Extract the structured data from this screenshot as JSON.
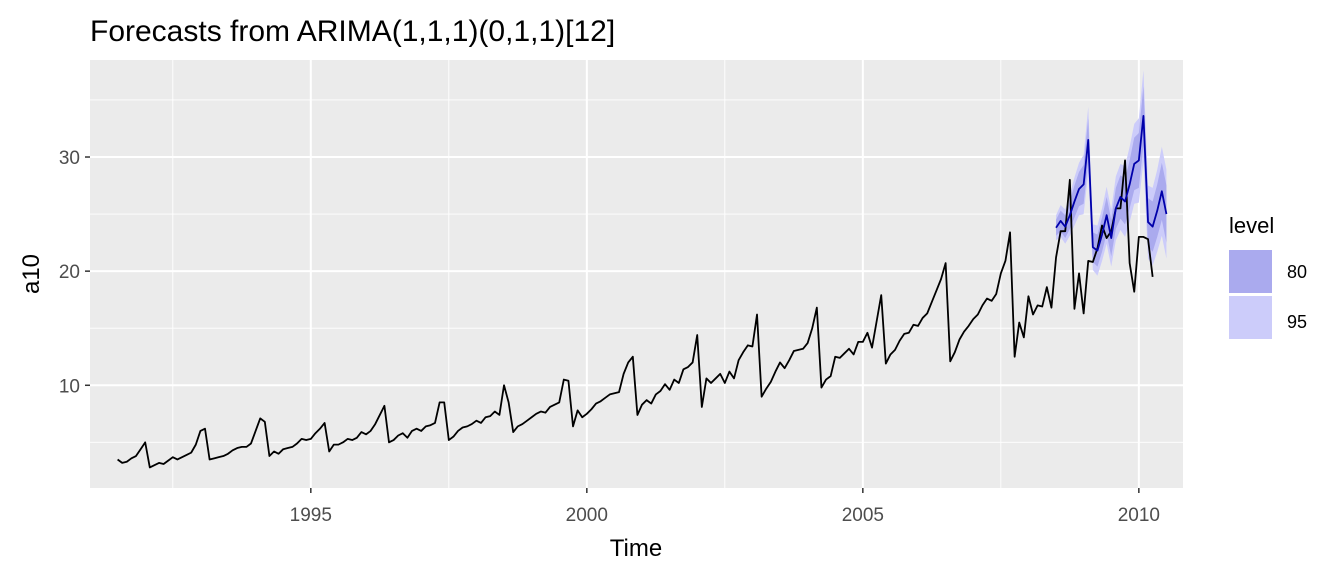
{
  "chart_data": {
    "type": "line",
    "title": "Forecasts from ARIMA(1,1,1)(0,1,1)[12]",
    "xlabel": "Time",
    "ylabel": "a10",
    "xlim": [
      1991.0,
      2010.8
    ],
    "ylim": [
      1.0,
      38.5
    ],
    "x_ticks": [
      1995,
      2000,
      2005,
      2010
    ],
    "x_tick_labels": [
      "1995",
      "2000",
      "2005",
      "2010"
    ],
    "y_ticks": [
      10,
      20,
      30
    ],
    "y_tick_labels": [
      "10",
      "20",
      "30"
    ],
    "grid": true,
    "legend": {
      "title": "level",
      "position": "right",
      "entries": [
        {
          "label": "80",
          "color": "#aaaaee"
        },
        {
          "label": "95",
          "color": "#ccccfa"
        }
      ]
    },
    "colors": {
      "panel": "#ebebeb",
      "grid_major": "#ffffff",
      "history_line": "#000000",
      "forecast_line": "#0000aa",
      "band_80": "#aaaaee",
      "band_95": "#ccccfa"
    },
    "history": {
      "start": [
        1991,
        7
      ],
      "frequency": 12,
      "values": [
        3.5,
        3.2,
        3.3,
        3.6,
        3.8,
        4.4,
        5.0,
        2.8,
        3.0,
        3.2,
        3.1,
        3.4,
        3.7,
        3.5,
        3.7,
        3.9,
        4.1,
        4.8,
        6.0,
        6.2,
        3.5,
        3.6,
        3.7,
        3.8,
        4.0,
        4.3,
        4.5,
        4.6,
        4.6,
        4.9,
        6.0,
        7.1,
        6.8,
        3.8,
        4.2,
        4.0,
        4.4,
        4.5,
        4.6,
        4.9,
        5.3,
        5.2,
        5.3,
        5.8,
        6.2,
        6.7,
        4.2,
        4.8,
        4.8,
        5.0,
        5.3,
        5.2,
        5.4,
        5.9,
        5.7,
        6.0,
        6.6,
        7.4,
        8.2,
        5.0,
        5.2,
        5.6,
        5.8,
        5.4,
        6.0,
        6.2,
        6.0,
        6.4,
        6.5,
        6.7,
        8.5,
        8.5,
        5.2,
        5.5,
        6.0,
        6.3,
        6.4,
        6.6,
        6.9,
        6.7,
        7.2,
        7.3,
        7.7,
        7.4,
        10.0,
        8.5,
        5.9,
        6.4,
        6.6,
        6.9,
        7.2,
        7.5,
        7.7,
        7.6,
        8.1,
        8.3,
        8.5,
        10.5,
        10.4,
        6.4,
        7.8,
        7.2,
        7.5,
        7.9,
        8.4,
        8.6,
        8.9,
        9.2,
        9.3,
        9.4,
        11.0,
        12.0,
        12.5,
        7.4,
        8.3,
        8.7,
        8.4,
        9.2,
        9.5,
        10.1,
        9.6,
        10.5,
        10.2,
        11.4,
        11.6,
        12.0,
        14.4,
        8.1,
        10.6,
        10.2,
        10.6,
        11.0,
        10.2,
        11.2,
        10.6,
        12.2,
        12.9,
        13.5,
        13.4,
        16.2,
        9.0,
        9.7,
        10.3,
        11.2,
        12.0,
        11.5,
        12.2,
        13.0,
        13.1,
        13.2,
        13.7,
        15.0,
        16.8,
        9.8,
        10.5,
        10.8,
        12.5,
        12.4,
        12.8,
        13.2,
        12.7,
        13.8,
        13.8,
        14.6,
        13.3,
        15.6,
        17.9,
        11.9,
        12.7,
        13.1,
        13.9,
        14.5,
        14.6,
        15.3,
        15.2,
        15.9,
        16.3,
        17.3,
        18.3,
        19.3,
        20.7,
        12.1,
        12.9,
        14.0,
        14.7,
        15.2,
        15.8,
        16.2,
        17.0,
        17.6,
        17.4,
        18.0,
        19.8,
        20.9,
        23.4,
        12.5,
        15.5,
        14.2,
        17.8,
        16.2,
        17.0,
        16.9,
        18.6,
        16.8,
        21.2,
        23.5,
        23.5,
        28.0,
        16.7,
        19.8,
        16.3,
        20.9,
        20.8,
        22.0,
        24.0,
        22.9,
        23.5,
        25.5,
        25.5,
        29.7,
        20.7,
        18.2,
        23.0,
        23.0,
        22.8,
        19.5
      ]
    },
    "forecast": {
      "start": [
        2008,
        7
      ],
      "frequency": 12,
      "mean": [
        23.8,
        24.4,
        23.9,
        24.9,
        26.1,
        27.2,
        27.6,
        31.5,
        22.1,
        21.8,
        23.2,
        24.9,
        22.9,
        25.5,
        26.5,
        26.1,
        27.6,
        29.4,
        29.7,
        33.6,
        24.3,
        23.9,
        25.3,
        27.0,
        25.0
      ],
      "lo80": [
        23.1,
        23.5,
        22.9,
        23.7,
        24.7,
        25.7,
        25.9,
        29.6,
        20.8,
        20.4,
        21.7,
        23.3,
        21.3,
        23.7,
        24.6,
        24.1,
        25.5,
        27.1,
        27.3,
        31.0,
        22.2,
        21.7,
        23.0,
        24.5,
        22.5
      ],
      "hi80": [
        24.5,
        25.3,
        24.9,
        26.1,
        27.5,
        28.7,
        29.3,
        33.4,
        23.4,
        23.2,
        24.7,
        26.5,
        24.5,
        27.3,
        28.4,
        28.1,
        29.7,
        31.7,
        32.1,
        36.2,
        26.4,
        26.1,
        27.6,
        29.5,
        27.5
      ],
      "lo95": [
        22.7,
        23.0,
        22.4,
        23.1,
        24.0,
        24.9,
        25.0,
        28.6,
        20.1,
        19.6,
        20.9,
        22.4,
        20.4,
        22.7,
        23.6,
        23.0,
        24.3,
        25.9,
        26.0,
        29.6,
        21.1,
        20.5,
        21.7,
        23.1,
        21.1
      ],
      "hi95": [
        24.9,
        25.8,
        25.4,
        26.7,
        28.2,
        29.5,
        30.2,
        34.4,
        24.1,
        24.0,
        25.5,
        27.4,
        25.4,
        28.3,
        29.4,
        29.2,
        30.9,
        32.9,
        33.4,
        37.6,
        27.5,
        27.3,
        28.9,
        30.9,
        28.9
      ]
    }
  }
}
